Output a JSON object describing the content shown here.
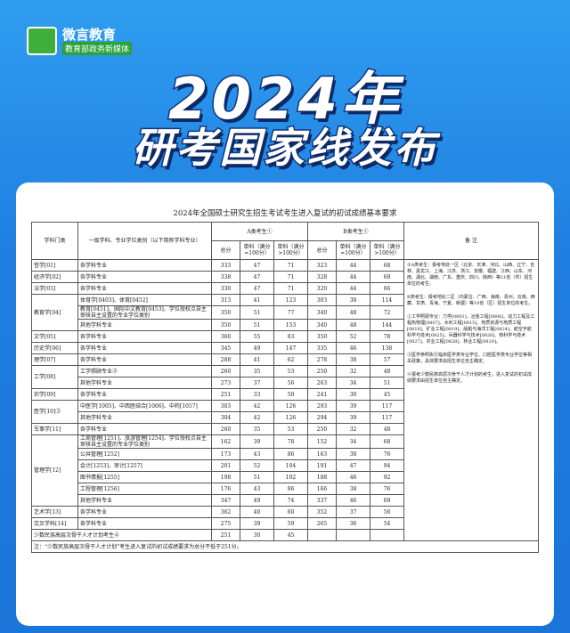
{
  "header": {
    "logo_name": "微言教育",
    "logo_sub": "教育部政务新媒体",
    "title_line1": "2024年",
    "title_line2": "研考国家线发布"
  },
  "table": {
    "title": "2024年全国硕士研究生招生考试考生进入复试的初试成绩基本要求",
    "headers": {
      "discipline": "学科门类",
      "subject": "一级学科、专业学位类别（以下简称学科专业）",
      "a_label": "A类考生①",
      "b_label": "B类考生①",
      "total": "总分",
      "single_100": "单科（满分=100分）",
      "single_gt100": "单科（满分>100分）",
      "remarks": "备 注"
    },
    "groups": [
      {
        "discipline": "哲学[01]",
        "items": [
          {
            "subject": "各学科专业",
            "a": [
              333,
              47,
              71
            ],
            "b": [
              323,
              44,
              68
            ]
          }
        ]
      },
      {
        "discipline": "经济学[02]",
        "items": [
          {
            "subject": "各学科专业",
            "a": [
              338,
              47,
              71
            ],
            "b": [
              328,
              44,
              68
            ]
          }
        ]
      },
      {
        "discipline": "法学[03]",
        "items": [
          {
            "subject": "各学科专业",
            "a": [
              330,
              47,
              71
            ],
            "b": [
              320,
              44,
              66
            ]
          }
        ]
      },
      {
        "discipline": "教育学[04]",
        "items": [
          {
            "subject": "体育学[0403]、体育[0452]",
            "a": [
              313,
              41,
              123
            ],
            "b": [
              303,
              38,
              114
            ]
          },
          {
            "subject": "教育[0451]、国际中文教育[0453]、学位授权点自主审核自主设置的专业学位类别",
            "a": [
              350,
              51,
              77
            ],
            "b": [
              340,
              48,
              72
            ]
          },
          {
            "subject": "其他学科专业",
            "a": [
              350,
              51,
              153
            ],
            "b": [
              340,
              48,
              144
            ]
          }
        ]
      },
      {
        "discipline": "文学[05]",
        "items": [
          {
            "subject": "各学科专业",
            "a": [
              360,
              55,
              83
            ],
            "b": [
              350,
              52,
              78
            ]
          }
        ]
      },
      {
        "discipline": "历史学[06]",
        "items": [
          {
            "subject": "各学科专业",
            "a": [
              345,
              49,
              147
            ],
            "b": [
              335,
              46,
              138
            ]
          }
        ]
      },
      {
        "discipline": "理学[07]",
        "items": [
          {
            "subject": "各学科专业",
            "a": [
              288,
              41,
              62
            ],
            "b": [
              278,
              38,
              57
            ]
          }
        ]
      },
      {
        "discipline": "工学[08]",
        "items": [
          {
            "subject": "工学照顾专业②",
            "a": [
              260,
              35,
              53
            ],
            "b": [
              250,
              32,
              48
            ]
          },
          {
            "subject": "其他学科专业",
            "a": [
              273,
              37,
              56
            ],
            "b": [
              263,
              34,
              51
            ]
          }
        ]
      },
      {
        "discipline": "农学[09]",
        "items": [
          {
            "subject": "各学科专业",
            "a": [
              251,
              33,
              50
            ],
            "b": [
              241,
              30,
              45
            ]
          }
        ]
      },
      {
        "discipline": "医学[10]③",
        "items": [
          {
            "subject": "中医学[1005]、中西医结合[1006]、中药[1057]",
            "a": [
              303,
              42,
              126
            ],
            "b": [
              293,
              39,
              117
            ]
          },
          {
            "subject": "其他学科专业",
            "a": [
              304,
              42,
              126
            ],
            "b": [
              294,
              39,
              117
            ]
          }
        ]
      },
      {
        "discipline": "军事学[11]",
        "items": [
          {
            "subject": "各学科专业",
            "a": [
              260,
              35,
              53
            ],
            "b": [
              250,
              32,
              48
            ]
          }
        ]
      },
      {
        "discipline": "管理学[12]",
        "items": [
          {
            "subject": "工商管理[1251]、旅游管理[1254]、学位授权点自主审核自主设置的专业学位类别",
            "a": [
              162,
              39,
              78
            ],
            "b": [
              152,
              34,
              68
            ]
          },
          {
            "subject": "公共管理[1252]",
            "a": [
              173,
              43,
              86
            ],
            "b": [
              163,
              38,
              76
            ]
          },
          {
            "subject": "会计[1253]、审计[1257]",
            "a": [
              201,
              52,
              104
            ],
            "b": [
              191,
              47,
              94
            ]
          },
          {
            "subject": "图书情报[1255]",
            "a": [
              198,
              51,
              102
            ],
            "b": [
              188,
              46,
              92
            ]
          },
          {
            "subject": "工程管理[1256]",
            "a": [
              176,
              43,
              86
            ],
            "b": [
              166,
              38,
              76
            ]
          },
          {
            "subject": "其他学科专业",
            "a": [
              347,
              49,
              74
            ],
            "b": [
              337,
              46,
              69
            ]
          }
        ]
      },
      {
        "discipline": "艺术学[13]",
        "items": [
          {
            "subject": "各学科专业",
            "a": [
              362,
              40,
              60
            ],
            "b": [
              352,
              37,
              56
            ]
          }
        ]
      },
      {
        "discipline": "交叉学科[14]",
        "items": [
          {
            "subject": "各学科专业",
            "a": [
              275,
              39,
              59
            ],
            "b": [
              265,
              36,
              54
            ]
          }
        ]
      }
    ],
    "special": {
      "label": "少数民族高层次骨干人才计划考生④",
      "values": [
        251,
        30,
        45
      ]
    },
    "remarks": [
      "①A类考生：报考地处一区（北京、天津、河北、山西、辽宁、吉林、黑龙江、上海、江苏、浙江、安徽、福建、江西、山东、河南、湖北、湖南、广东、重庆、四川、陕西）等21省（市）招生单位的考生。",
      "B类考生：报考地处二区（内蒙古、广西、海南、贵州、云南、西藏、甘肃、青海、宁夏、新疆）等10省（区）招生单位的考生。",
      "②工学照顾专业：力学[0801]、冶金工程[0806]、动力工程及工程热物理[0807]、水利工程[0815]、地质资源与地质工程[0818]、矿业工程[0819]、船舶与海洋工程[0824]、航空宇航科学与技术[0825]、兵器科学与技术[0826]、核科学与技术[0827]、农业工程[0828]、林业工程[0829]。",
      "③医学参照执行临床医学类专业学位、口腔医学类专业学位等相关政策，具体要求由招生单位自主确定。",
      "④报考少数民族高层次骨干人才计划的考生，进入复试的初试成绩要求由招生单位自主确定。"
    ],
    "footnote": "注：“少数民族高层次骨干人才计划”考生进入复试的初试成绩要求为总分不低于251分。"
  }
}
